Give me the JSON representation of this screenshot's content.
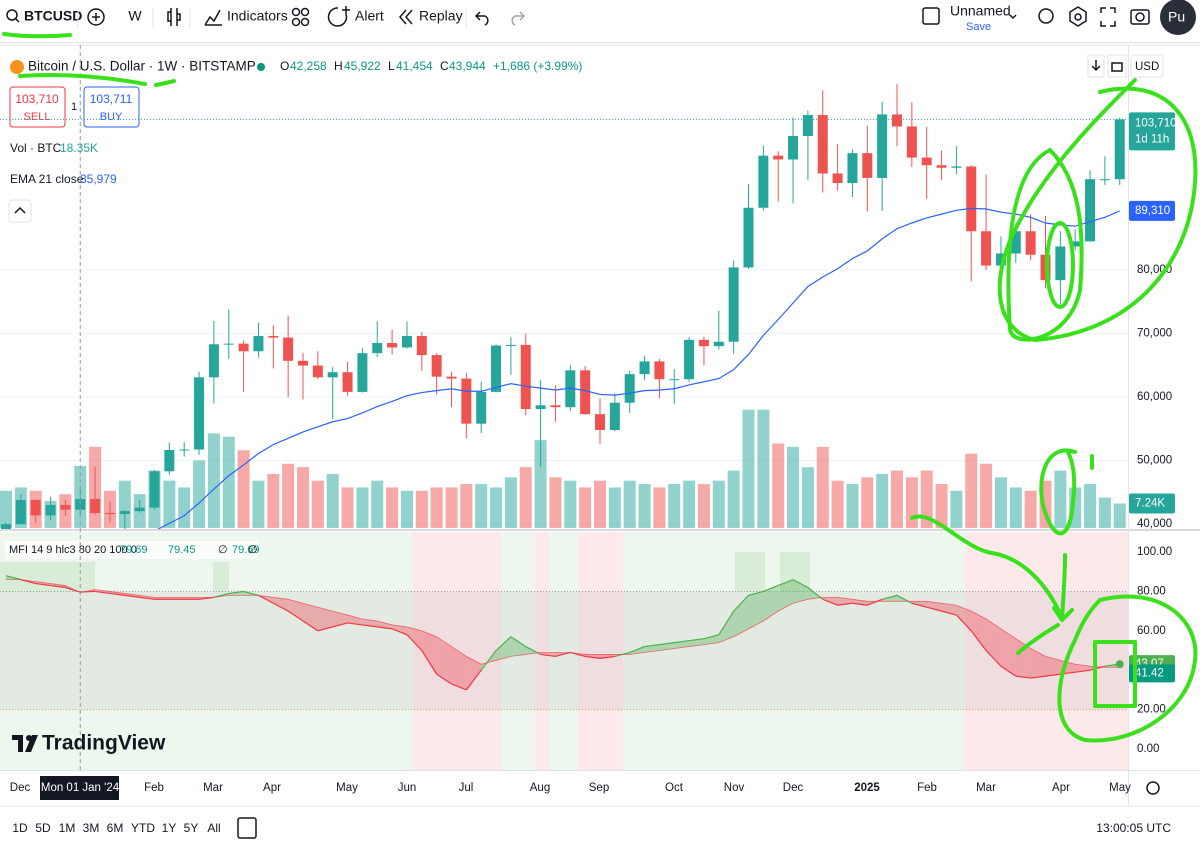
{
  "toolbar": {
    "symbol": "BTCUSD",
    "interval": "W",
    "indicators": "Indicators",
    "alert": "Alert",
    "replay": "Replay",
    "layout_name": "Unnamed",
    "save": "Save",
    "user": "Pu"
  },
  "legend": {
    "title": "Bitcoin / U.S. Dollar · 1W · BITSTAMP",
    "o_label": "O",
    "o": "42,258",
    "h_label": "H",
    "h": "45,922",
    "l_label": "L",
    "l": "41,454",
    "c_label": "C",
    "c": "43,944",
    "change": "+1,686 (+3.99%)",
    "sell_price": "103,710",
    "sell": "SELL",
    "spread": "1",
    "buy_price": "103,711",
    "buy": "BUY",
    "vol_label": "Vol · BTC",
    "vol_value": "18.35K",
    "ema_label": "EMA 21 close",
    "ema_value": "35,979",
    "mfi_label": "MFI 14 9 hlc3 80 20 100 0",
    "mfi_values": [
      "79.69",
      "79.45",
      "∅",
      "79.69",
      "∅"
    ]
  },
  "price_scale": {
    "currency": "USD",
    "last_price": "103,710",
    "countdown": "1d 11h",
    "ema_last": "89,310",
    "volume_last": "7.24K",
    "mfi_last": "43.07",
    "signal_last": "41.42"
  },
  "time_axis": {
    "labels": [
      "Dec",
      "Mon 01 Jan '24",
      "Feb",
      "Mar",
      "Apr",
      "May",
      "Jun",
      "Jul",
      "Aug",
      "Sep",
      "Oct",
      "Nov",
      "Dec",
      "2025",
      "Feb",
      "Mar",
      "Apr",
      "May"
    ]
  },
  "bottom_bar": {
    "ranges": [
      "1D",
      "5D",
      "1M",
      "3M",
      "6M",
      "YTD",
      "1Y",
      "5Y",
      "All"
    ],
    "clock": "13:00:05 UTC"
  },
  "branding": "TradingView",
  "chart_data": {
    "type": "candlestick",
    "up_color": "#26a69a",
    "down_color": "#ef5350",
    "ema_color": "#2962ff",
    "mfi_up_color": "#4caf50",
    "mfi_down_color": "#f23645",
    "open": [
      37700,
      39970,
      43790,
      41360,
      43000,
      42258,
      43944,
      41730,
      41580,
      42030,
      42580,
      48300,
      51660,
      51730,
      63100,
      68300,
      68400,
      67200,
      69600,
      69350,
      65700,
      64950,
      63100,
      63900,
      60800,
      66900,
      68500,
      67800,
      69600,
      66600,
      63200,
      62900,
      55800,
      60800,
      68100,
      68200,
      58100,
      58700,
      58400,
      64200,
      57300,
      54800,
      59100,
      63600,
      65600,
      62800,
      62800,
      69000,
      68000,
      68700,
      80400,
      89800,
      98000,
      97400,
      101100,
      104400,
      95200,
      93700,
      98400,
      94500,
      104500,
      102600,
      97700,
      96500,
      96100,
      96300,
      86100,
      80700,
      82600,
      86100,
      82400,
      78400,
      83700,
      84500,
      94300,
      94300
    ],
    "high": [
      40200,
      44700,
      43800,
      44300,
      43800,
      45922,
      48970,
      43500,
      42200,
      43800,
      48500,
      52800,
      52900,
      64000,
      72000,
      73800,
      68900,
      71700,
      71300,
      72800,
      66900,
      67200,
      64700,
      65500,
      67700,
      71900,
      70600,
      71900,
      70200,
      66900,
      64000,
      63800,
      62400,
      68300,
      69400,
      70000,
      62700,
      61800,
      65000,
      64900,
      59800,
      60600,
      64100,
      66500,
      66000,
      64400,
      69400,
      69500,
      73600,
      81500,
      93500,
      99600,
      98700,
      104000,
      105100,
      108300,
      99800,
      99000,
      102700,
      106500,
      109300,
      106400,
      102500,
      98800,
      99500,
      96500,
      95000,
      85300,
      87400,
      88800,
      88500,
      86100,
      86400,
      95700,
      97900,
      104000
    ],
    "low": [
      37600,
      39970,
      40200,
      40600,
      41300,
      41454,
      41500,
      40300,
      38500,
      41800,
      42250,
      47700,
      50600,
      50900,
      59000,
      66000,
      60800,
      66200,
      64500,
      60000,
      59600,
      62800,
      56500,
      60200,
      60700,
      66300,
      66700,
      67600,
      64100,
      60400,
      58400,
      53500,
      54300,
      60700,
      63500,
      57100,
      49000,
      56100,
      57800,
      57200,
      52600,
      54600,
      57500,
      62700,
      59800,
      58900,
      62400,
      65000,
      67500,
      66800,
      80200,
      89400,
      90800,
      90500,
      94200,
      92200,
      92500,
      91500,
      89200,
      89300,
      99500,
      96200,
      91200,
      94100,
      95100,
      78200,
      80000,
      76600,
      81100,
      81600,
      77100,
      74500,
      83100,
      84500,
      93400,
      93400
    ],
    "close": [
      39970,
      43790,
      41360,
      43000,
      42258,
      43944,
      41730,
      41580,
      42030,
      42580,
      48300,
      51660,
      51730,
      63100,
      68300,
      68400,
      67200,
      69600,
      69350,
      65700,
      64950,
      63100,
      63900,
      60800,
      66900,
      68500,
      67800,
      69600,
      66600,
      63200,
      62900,
      55800,
      60800,
      68100,
      68200,
      58100,
      58700,
      58400,
      64200,
      57300,
      54800,
      59100,
      63600,
      65600,
      62800,
      62800,
      69000,
      68000,
      68700,
      80400,
      89800,
      98000,
      97400,
      101100,
      104400,
      95200,
      93700,
      98400,
      94500,
      104500,
      102600,
      97700,
      96500,
      96100,
      96300,
      86100,
      80700,
      82600,
      86100,
      82400,
      78400,
      83700,
      84500,
      94300,
      94300,
      103710
    ],
    "volume": [
      11,
      12,
      11,
      8,
      10,
      18.35,
      24,
      11,
      14,
      10,
      17,
      14,
      12,
      20,
      28,
      27,
      23,
      14,
      16,
      19,
      18,
      14,
      16,
      12,
      12,
      14,
      12,
      11,
      11,
      12,
      12,
      13,
      13,
      12,
      15,
      18,
      26,
      15,
      14,
      12,
      14,
      12,
      14,
      13,
      12,
      13,
      14,
      13,
      14,
      17,
      35,
      35,
      25,
      24,
      18,
      24,
      14,
      13,
      15,
      16,
      17,
      15,
      17,
      13,
      11,
      22,
      19,
      15,
      12,
      11,
      14,
      17,
      12,
      13,
      9,
      7.24
    ],
    "ema": [
      33000,
      33800,
      34500,
      35200,
      35600,
      35979,
      36500,
      37000,
      37400,
      37800,
      38900,
      40100,
      41300,
      43300,
      45500,
      47600,
      49300,
      51100,
      52500,
      53500,
      54500,
      55300,
      56100,
      56600,
      57500,
      58500,
      59300,
      60200,
      60700,
      61000,
      61300,
      60900,
      60900,
      61500,
      62100,
      61700,
      61400,
      61100,
      61400,
      61000,
      60400,
      60300,
      60600,
      61000,
      61100,
      61300,
      61900,
      62400,
      62900,
      64300,
      66700,
      69700,
      72200,
      74800,
      77400,
      78900,
      80200,
      81800,
      83000,
      84900,
      86500,
      87400,
      88200,
      88800,
      89400,
      89700,
      89600,
      89100,
      88800,
      88300,
      87400,
      87100,
      86900,
      87600,
      88300,
      89310
    ],
    "mfi": [
      88,
      86,
      84,
      83,
      82,
      79.69,
      80,
      79,
      78,
      77,
      76,
      76,
      76,
      76,
      77,
      79,
      80,
      78,
      74,
      70,
      65,
      60,
      62,
      64,
      63,
      62,
      61,
      58,
      50,
      38,
      33,
      30,
      40,
      50,
      57,
      52,
      48,
      47,
      49,
      47,
      46,
      47,
      49,
      52,
      53,
      54,
      55,
      56,
      58,
      70,
      78,
      80,
      83,
      86,
      82,
      76,
      73,
      74,
      73,
      76,
      78,
      74,
      72,
      70,
      68,
      60,
      50,
      42,
      37,
      36,
      37,
      38,
      39,
      40,
      42,
      43.07
    ],
    "mfi_signal": [
      86,
      86,
      85,
      84,
      83,
      79.45,
      81,
      80,
      79,
      78,
      77,
      77,
      77,
      77,
      77,
      78,
      78,
      78,
      77,
      76,
      74,
      72,
      70,
      68,
      66,
      65,
      63,
      62,
      60,
      57,
      52,
      47,
      43,
      45,
      47,
      48,
      49,
      49,
      49,
      48,
      48,
      48,
      48,
      49,
      50,
      51,
      52,
      53,
      54,
      57,
      61,
      65,
      70,
      74,
      76,
      77,
      77,
      76,
      75,
      75,
      75,
      75,
      75,
      74,
      73,
      70,
      66,
      61,
      56,
      51,
      47,
      45,
      43,
      42,
      41.5,
      41.42
    ],
    "ylim": [
      39370,
      115430
    ],
    "yticks": [
      {
        "value": 80000,
        "label": "80,000"
      },
      {
        "value": 70000,
        "label": "70,000"
      },
      {
        "value": 60000,
        "label": "60,000"
      },
      {
        "value": 50000,
        "label": "50,000"
      },
      {
        "value": 40000,
        "label": "40,000"
      }
    ],
    "mfi_ylim": [
      -10.7,
      110.2
    ],
    "mfi_yticks": [
      {
        "value": 100,
        "label": "100.00"
      },
      {
        "value": 80,
        "label": "80.00"
      },
      {
        "value": 60,
        "label": "60.00"
      },
      {
        "value": 20,
        "label": "20.00"
      },
      {
        "value": 0,
        "label": "0.00"
      }
    ],
    "grid": true
  }
}
